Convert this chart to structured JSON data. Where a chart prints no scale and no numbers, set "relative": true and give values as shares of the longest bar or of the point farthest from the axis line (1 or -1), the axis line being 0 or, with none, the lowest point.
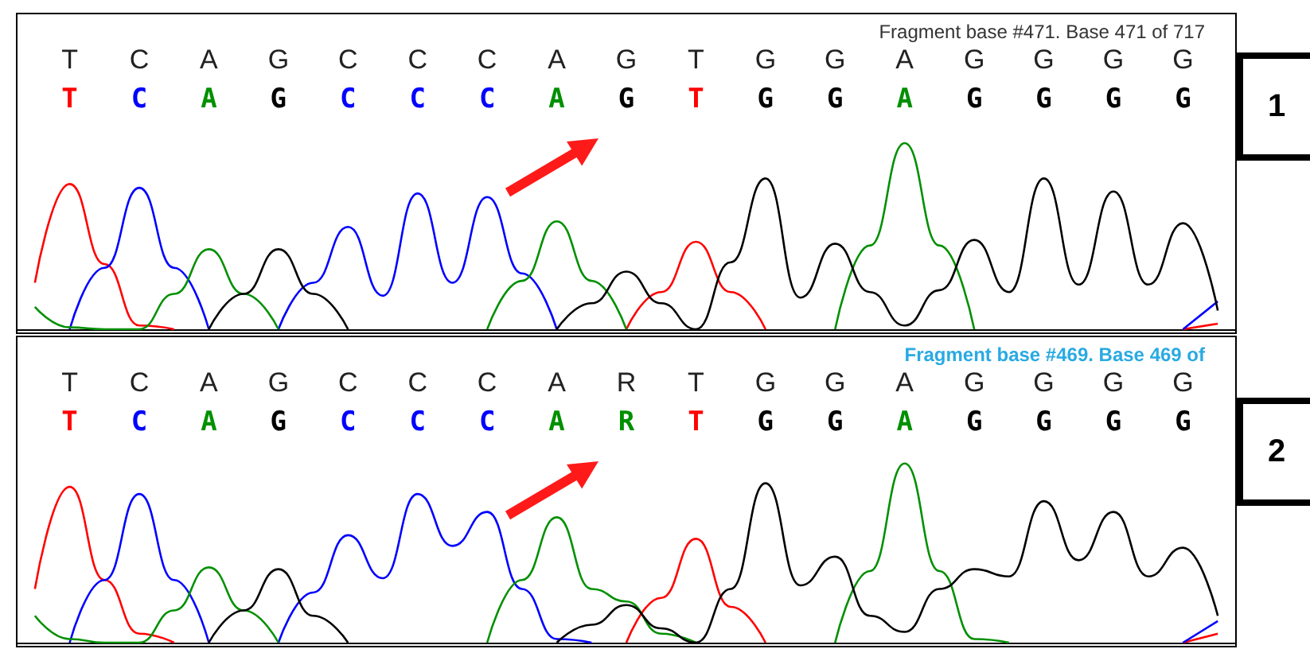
{
  "chart_data": [
    {
      "type": "line",
      "title": "Fragment base #471. Base 471 of 717",
      "relative": true,
      "marker": "none",
      "annotations": [
        "T",
        "C",
        "A",
        "G",
        "C",
        "C",
        "C",
        "A",
        "G",
        "T",
        "G",
        "G",
        "A",
        "G",
        "G",
        "G",
        "G",
        "1"
      ],
      "categories": [
        null,
        "T",
        null,
        "C",
        null,
        "A",
        null,
        "G",
        null,
        "C",
        null,
        "C",
        null,
        "C",
        null,
        "A",
        null,
        "G",
        null,
        "T",
        null,
        "G",
        null,
        "G",
        null,
        "A",
        null,
        "G",
        null,
        "G",
        null,
        "G",
        null,
        "G",
        null
      ],
      "series": [
        {
          "color": "#ff0000",
          "values": [
            0.25,
            0.78,
            0.35,
            0.02,
            0,
            null,
            null,
            null,
            null,
            null,
            null,
            null,
            null,
            null,
            null,
            null,
            null,
            0,
            0.2,
            0.47,
            0.2,
            0,
            null,
            null,
            null,
            null,
            null,
            null,
            null,
            null,
            null,
            null,
            null,
            0,
            0.03
          ]
        },
        {
          "color": "#0000ff",
          "values": [
            null,
            0,
            0.33,
            0.76,
            0.33,
            0,
            null,
            0,
            0.25,
            0.55,
            0.18,
            0.73,
            0.25,
            0.71,
            0.3,
            0,
            null,
            null,
            null,
            null,
            null,
            null,
            null,
            null,
            null,
            null,
            null,
            null,
            null,
            null,
            null,
            null,
            null,
            0,
            0.15
          ]
        },
        {
          "color": "#009000",
          "values": [
            0.12,
            0.01,
            0,
            0,
            0.19,
            0.43,
            0.19,
            0,
            null,
            null,
            null,
            null,
            null,
            0,
            0.26,
            0.58,
            0.26,
            0,
            null,
            null,
            null,
            null,
            null,
            0,
            0.45,
            1,
            0.45,
            0,
            null,
            null,
            null,
            null,
            null,
            null,
            null
          ]
        },
        {
          "color": "#000000",
          "values": [
            null,
            null,
            null,
            null,
            null,
            0,
            0.19,
            0.43,
            0.19,
            0,
            null,
            null,
            null,
            null,
            null,
            0,
            0.14,
            0.31,
            0.14,
            0,
            0.36,
            0.81,
            0.17,
            0.46,
            0.2,
            0.02,
            0.21,
            0.48,
            0.2,
            0.81,
            0.24,
            0.74,
            0.24,
            0.57,
            0.1
          ]
        }
      ]
    },
    {
      "type": "line",
      "title": "Fragment base #469. Base 469 of",
      "relative": true,
      "marker": "none",
      "annotations": [
        "T",
        "C",
        "A",
        "G",
        "C",
        "C",
        "C",
        "A",
        "R",
        "T",
        "G",
        "G",
        "A",
        "G",
        "G",
        "G",
        "G",
        "2"
      ],
      "categories": [
        null,
        "T",
        null,
        "C",
        null,
        "A",
        null,
        "G",
        null,
        "C",
        null,
        "C",
        null,
        "C",
        null,
        "A",
        null,
        "R",
        null,
        "T",
        null,
        "G",
        null,
        "G",
        null,
        "A",
        null,
        "G",
        null,
        "G",
        null,
        "G",
        null,
        "G",
        null
      ],
      "series": [
        {
          "color": "#ff0000",
          "values": [
            0.3,
            0.87,
            0.35,
            0.05,
            0,
            null,
            null,
            null,
            null,
            null,
            null,
            null,
            null,
            null,
            null,
            null,
            null,
            0,
            0.25,
            0.58,
            0.2,
            0,
            null,
            null,
            null,
            null,
            null,
            null,
            null,
            null,
            null,
            null,
            null,
            0,
            0.05
          ]
        },
        {
          "color": "#0000ff",
          "values": [
            null,
            0,
            0.35,
            0.83,
            0.35,
            0,
            null,
            0,
            0.28,
            0.6,
            0.36,
            0.83,
            0.54,
            0.73,
            0.3,
            0.02,
            0,
            null,
            null,
            null,
            null,
            null,
            null,
            null,
            null,
            null,
            null,
            null,
            null,
            null,
            null,
            null,
            null,
            0,
            0.12
          ]
        },
        {
          "color": "#009000",
          "values": [
            0.15,
            0.02,
            0,
            0,
            0.18,
            0.42,
            0.18,
            0,
            null,
            null,
            null,
            null,
            null,
            0,
            0.35,
            0.7,
            0.3,
            0.23,
            0.05,
            0,
            null,
            null,
            null,
            0,
            0.4,
            1,
            0.4,
            0.02,
            0,
            null,
            null,
            null,
            null,
            null,
            null
          ]
        },
        {
          "color": "#000000",
          "values": [
            null,
            null,
            null,
            null,
            null,
            0,
            0.18,
            0.41,
            0.15,
            0,
            null,
            null,
            null,
            null,
            null,
            0,
            0.1,
            0.21,
            0.08,
            0,
            0.3,
            0.89,
            0.32,
            0.48,
            0.15,
            0.06,
            0.3,
            0.41,
            0.37,
            0.79,
            0.46,
            0.73,
            0.37,
            0.53,
            0.15
          ]
        }
      ]
    }
  ]
}
